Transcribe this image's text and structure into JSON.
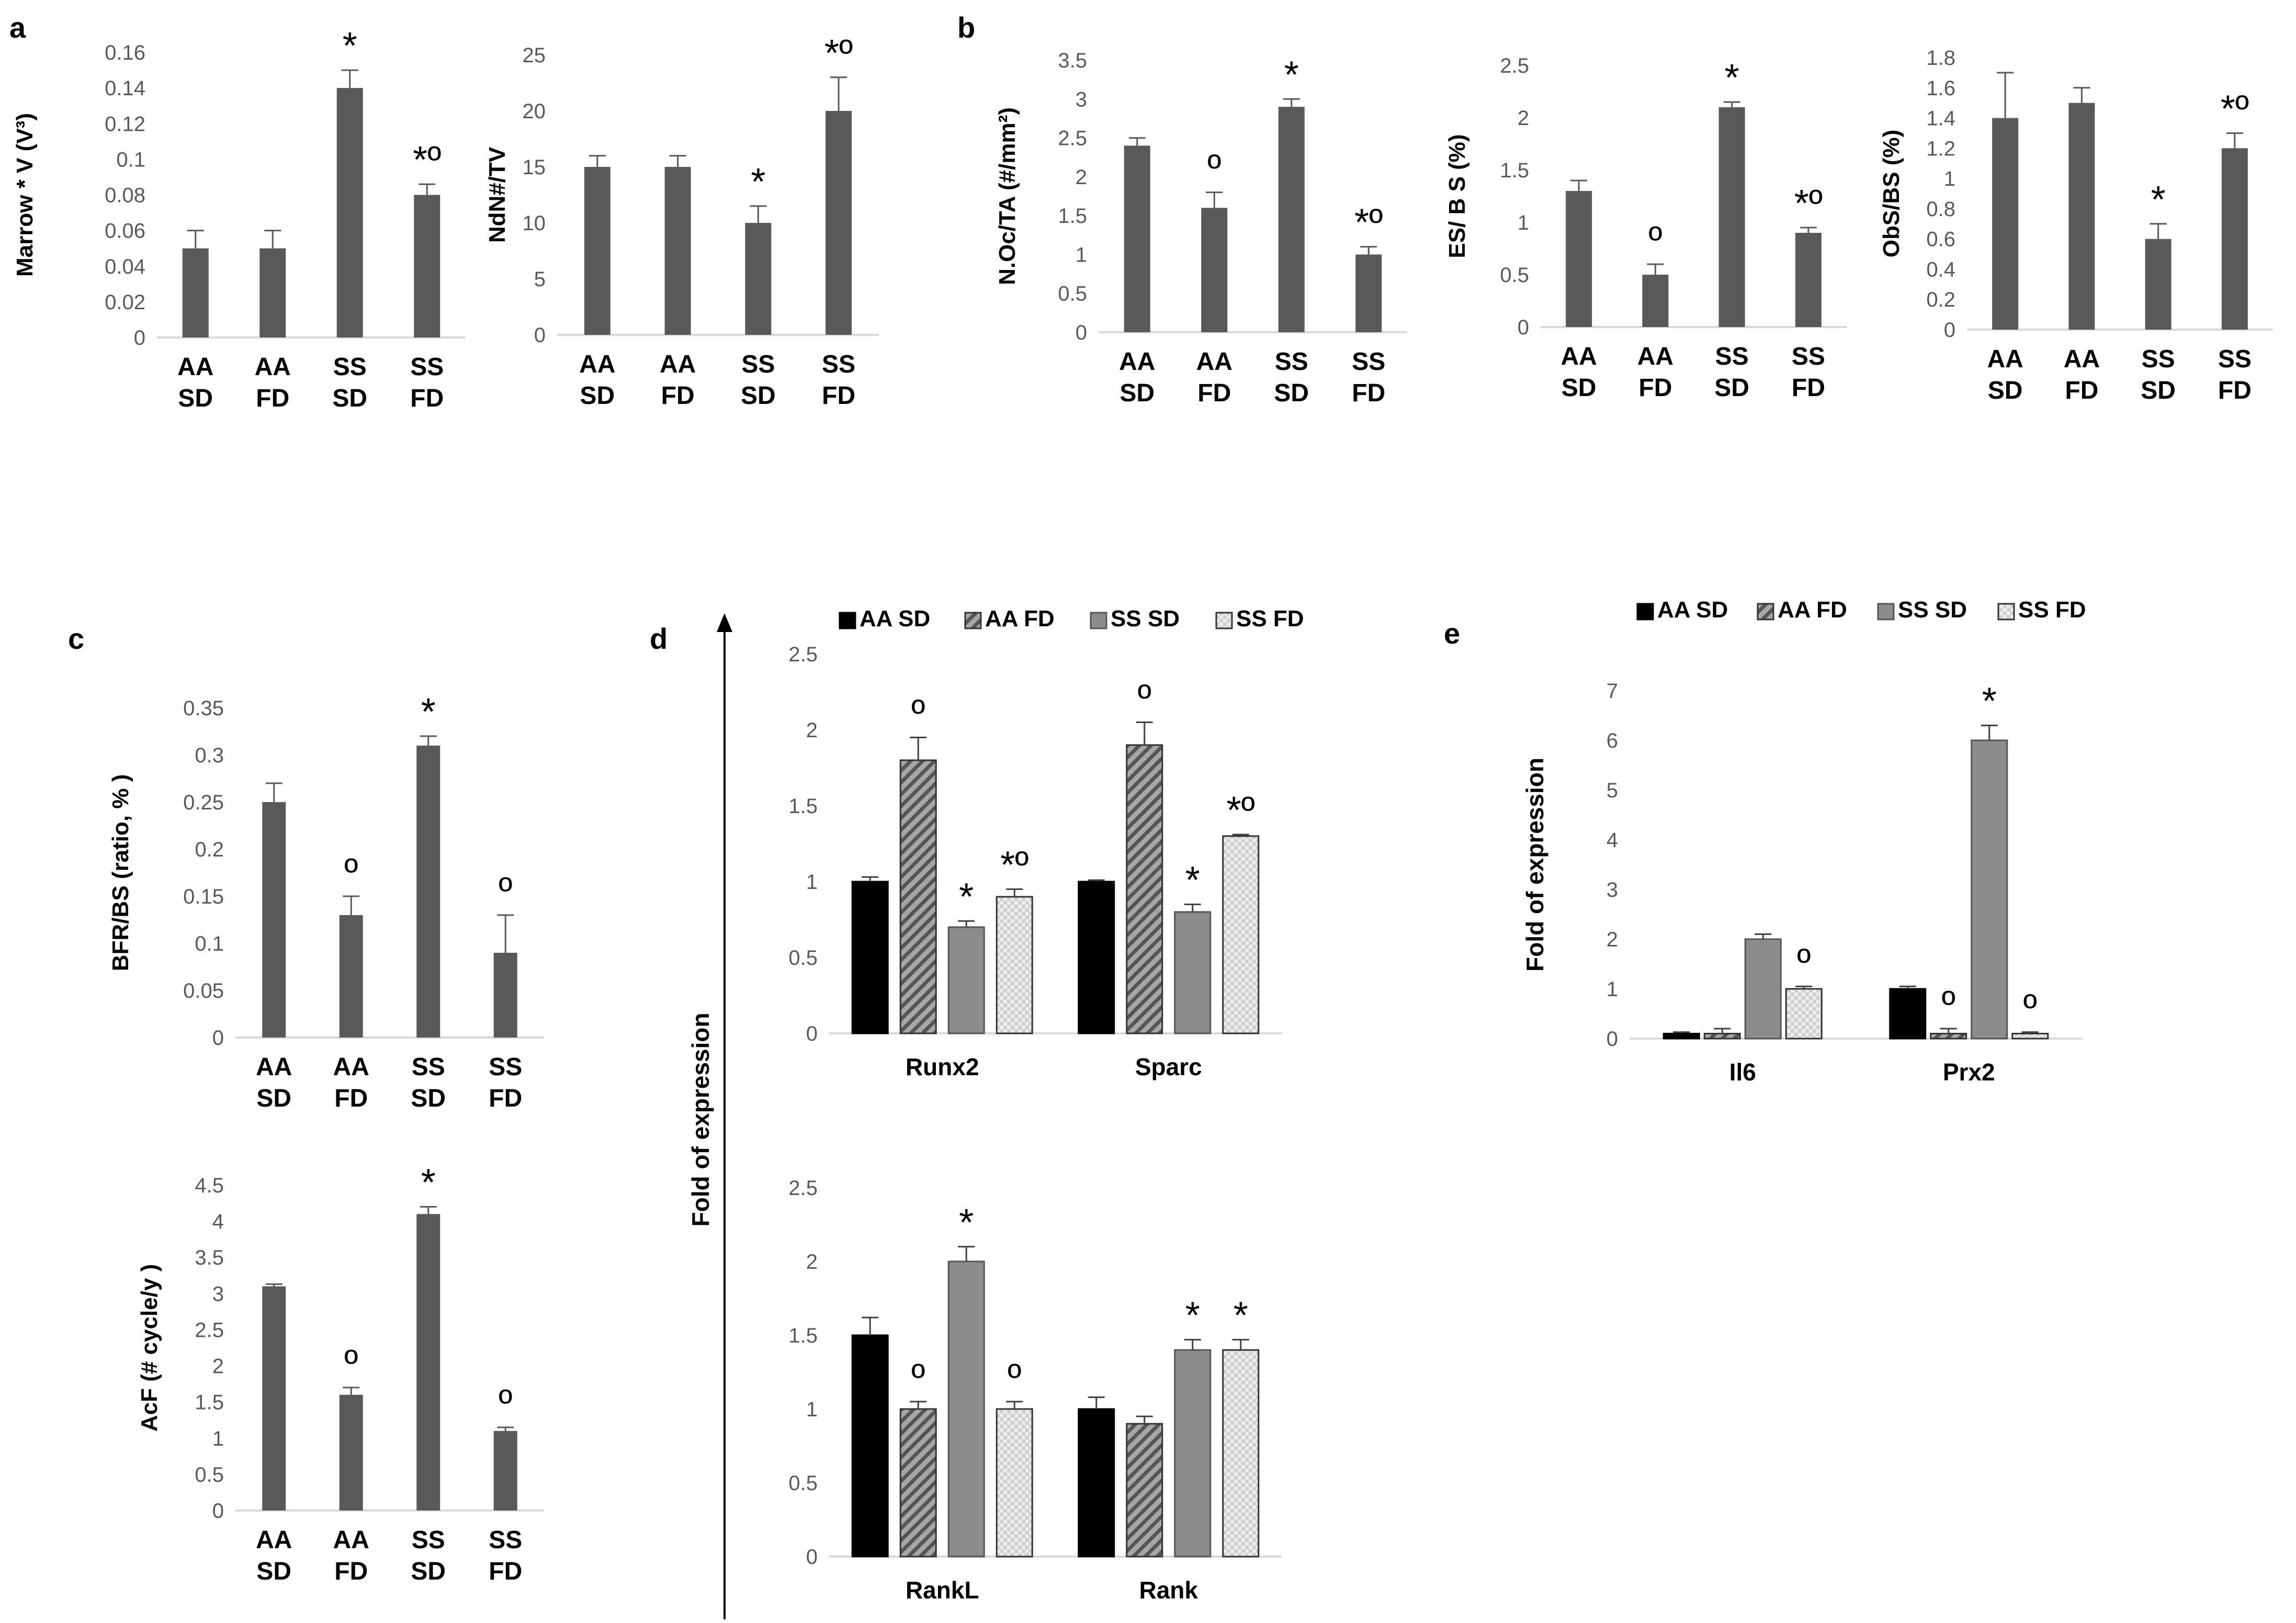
{
  "figure": {
    "panel_labels": {
      "a": "a",
      "b": "b",
      "c": "c",
      "d": "d",
      "e": "e"
    },
    "d_shared_ylabel": "Fold of expression",
    "colors": {
      "bar": "#595959",
      "aa_sd": "#000000",
      "aa_fd": "#7a7a7a",
      "ss_sd": "#8c8c8c",
      "ss_fd": "#e6e6e6",
      "axis": "#d9d9d9",
      "error": "#404040"
    }
  },
  "chart_data": [
    {
      "id": "a1",
      "type": "bar",
      "panel": "a",
      "title": "",
      "xlabel": "",
      "ylabel": "Marrow * V (V³)",
      "categories": [
        [
          "AA",
          "SD"
        ],
        [
          "AA",
          "FD"
        ],
        [
          "SS",
          "SD"
        ],
        [
          "SS",
          "FD"
        ]
      ],
      "values": [
        0.05,
        0.05,
        0.14,
        0.08
      ],
      "errors": [
        0.01,
        0.01,
        0.01,
        0.006
      ],
      "annotations": [
        "",
        "",
        "*",
        "*º"
      ],
      "yticks": [
        "0",
        "0.02",
        "0.04",
        "0.06",
        "0.08",
        "0.1",
        "0.12",
        "0.14",
        "0.16"
      ],
      "ylim": [
        0,
        0.16
      ]
    },
    {
      "id": "a2",
      "type": "bar",
      "panel": "a",
      "title": "",
      "xlabel": "",
      "ylabel": "NdN#/TV",
      "categories": [
        [
          "AA",
          "SD"
        ],
        [
          "AA",
          "FD"
        ],
        [
          "SS",
          "SD"
        ],
        [
          "SS",
          "FD"
        ]
      ],
      "values": [
        15,
        15,
        10,
        20
      ],
      "errors": [
        1,
        1,
        1.5,
        3
      ],
      "annotations": [
        "",
        "",
        "*",
        "*º"
      ],
      "yticks": [
        "0",
        "5",
        "10",
        "15",
        "20",
        "25"
      ],
      "ylim": [
        0,
        25
      ]
    },
    {
      "id": "b1",
      "type": "bar",
      "panel": "b",
      "title": "",
      "xlabel": "",
      "ylabel": "N.Oc/TA (#/mm²)",
      "categories": [
        [
          "AA",
          "SD"
        ],
        [
          "AA",
          "FD"
        ],
        [
          "SS",
          "SD"
        ],
        [
          "SS",
          "FD"
        ]
      ],
      "values": [
        2.4,
        1.6,
        2.9,
        1.0
      ],
      "errors": [
        0.1,
        0.2,
        0.1,
        0.1
      ],
      "annotations": [
        "",
        "º",
        "*",
        "*º"
      ],
      "yticks": [
        "0",
        "0.5",
        "1",
        "1.5",
        "2",
        "2.5",
        "3",
        "3.5"
      ],
      "ylim": [
        0,
        3.5
      ]
    },
    {
      "id": "b2",
      "type": "bar",
      "panel": "b",
      "title": "",
      "xlabel": "",
      "ylabel": "ES/ B S (%)",
      "categories": [
        [
          "AA",
          "SD"
        ],
        [
          "AA",
          "FD"
        ],
        [
          "SS",
          "SD"
        ],
        [
          "SS",
          "FD"
        ]
      ],
      "values": [
        1.3,
        0.5,
        2.1,
        0.9
      ],
      "errors": [
        0.1,
        0.1,
        0.05,
        0.05
      ],
      "annotations": [
        "",
        "º",
        "*",
        "*º"
      ],
      "yticks": [
        "0",
        "0.5",
        "1",
        "1.5",
        "2",
        "2.5"
      ],
      "ylim": [
        0,
        2.5
      ]
    },
    {
      "id": "b3",
      "type": "bar",
      "panel": "b",
      "title": "",
      "xlabel": "",
      "ylabel": "ObS/BS (%)",
      "categories": [
        [
          "AA",
          "SD"
        ],
        [
          "AA",
          "FD"
        ],
        [
          "SS",
          "SD"
        ],
        [
          "SS",
          "FD"
        ]
      ],
      "values": [
        1.4,
        1.5,
        0.6,
        1.2
      ],
      "errors": [
        0.3,
        0.1,
        0.1,
        0.1
      ],
      "annotations": [
        "",
        "",
        "*",
        "*º"
      ],
      "yticks": [
        "0",
        "0.2",
        "0.4",
        "0.6",
        "0.8",
        "1",
        "1.2",
        "1.4",
        "1.6",
        "1.8"
      ],
      "ylim": [
        0,
        1.8
      ]
    },
    {
      "id": "c1",
      "type": "bar",
      "panel": "c",
      "title": "",
      "xlabel": "",
      "ylabel": "BFR/BS (ratio, % )",
      "categories": [
        [
          "AA",
          "SD"
        ],
        [
          "AA",
          "FD"
        ],
        [
          "SS",
          "SD"
        ],
        [
          "SS",
          "FD"
        ]
      ],
      "values": [
        0.25,
        0.13,
        0.31,
        0.09
      ],
      "errors": [
        0.02,
        0.02,
        0.01,
        0.04
      ],
      "annotations": [
        "",
        "º",
        "*",
        "º"
      ],
      "yticks": [
        "0",
        "0.05",
        "0.1",
        "0.15",
        "0.2",
        "0.25",
        "0.3",
        "0.35"
      ],
      "ylim": [
        0,
        0.35
      ]
    },
    {
      "id": "c2",
      "type": "bar",
      "panel": "c",
      "title": "",
      "xlabel": "",
      "ylabel": "AcF (# cycle/y )",
      "categories": [
        [
          "AA",
          "SD"
        ],
        [
          "AA",
          "FD"
        ],
        [
          "SS",
          "SD"
        ],
        [
          "SS",
          "FD"
        ]
      ],
      "values": [
        3.1,
        1.6,
        4.1,
        1.1
      ],
      "errors": [
        0.03,
        0.1,
        0.1,
        0.05
      ],
      "annotations": [
        "",
        "º",
        "*",
        "º"
      ],
      "yticks": [
        "0",
        "0.5",
        "1",
        "1.5",
        "2",
        "2.5",
        "3",
        "3.5",
        "4",
        "4.5"
      ],
      "ylim": [
        0,
        4.5
      ]
    },
    {
      "id": "d1",
      "type": "bar",
      "panel": "d",
      "title": "",
      "xlabel": "",
      "ylabel": "",
      "legend": [
        "AA SD",
        "AA FD",
        "SS SD",
        "SS FD"
      ],
      "categories": [
        "Runx2",
        "Sparc"
      ],
      "series": [
        {
          "name": "AA SD",
          "values": [
            1.0,
            1.0
          ],
          "errors": [
            0.03,
            0.01
          ],
          "annotations": [
            "",
            ""
          ]
        },
        {
          "name": "AA FD",
          "values": [
            1.8,
            1.9
          ],
          "errors": [
            0.15,
            0.15
          ],
          "annotations": [
            "º",
            "º"
          ]
        },
        {
          "name": "SS SD",
          "values": [
            0.7,
            0.8
          ],
          "errors": [
            0.04,
            0.05
          ],
          "annotations": [
            "*",
            "*"
          ]
        },
        {
          "name": "SS FD",
          "values": [
            0.9,
            1.3
          ],
          "errors": [
            0.05,
            0.01
          ],
          "annotations": [
            "*º",
            "*º"
          ]
        }
      ],
      "yticks": [
        "0",
        "0.5",
        "1",
        "1.5",
        "2",
        "2.5"
      ],
      "ylim": [
        0,
        2.5
      ]
    },
    {
      "id": "d2",
      "type": "bar",
      "panel": "d",
      "title": "",
      "xlabel": "",
      "ylabel": "",
      "categories": [
        "RankL",
        "Rank"
      ],
      "series": [
        {
          "name": "AA SD",
          "values": [
            1.5,
            1.0
          ],
          "errors": [
            0.12,
            0.08
          ],
          "annotations": [
            "",
            ""
          ]
        },
        {
          "name": "AA FD",
          "values": [
            1.0,
            0.9
          ],
          "errors": [
            0.05,
            0.05
          ],
          "annotations": [
            "º",
            ""
          ]
        },
        {
          "name": "SS SD",
          "values": [
            2.0,
            1.4
          ],
          "errors": [
            0.1,
            0.07
          ],
          "annotations": [
            "*",
            "*"
          ]
        },
        {
          "name": "SS FD",
          "values": [
            1.0,
            1.4
          ],
          "errors": [
            0.05,
            0.07
          ],
          "annotations": [
            "º",
            "*"
          ]
        }
      ],
      "yticks": [
        "0",
        "0.5",
        "1",
        "1.5",
        "2",
        "2.5"
      ],
      "ylim": [
        0,
        2.5
      ]
    },
    {
      "id": "e1",
      "type": "bar",
      "panel": "e",
      "title": "",
      "xlabel": "",
      "ylabel": "Fold of expression",
      "legend": [
        "AA SD",
        "AA FD",
        "SS SD",
        "SS FD"
      ],
      "categories": [
        "Il6",
        "Prx2"
      ],
      "series": [
        {
          "name": "AA SD",
          "values": [
            0.1,
            1.0
          ],
          "errors": [
            0.03,
            0.05
          ],
          "annotations": [
            "",
            ""
          ]
        },
        {
          "name": "AA FD",
          "values": [
            0.1,
            0.1
          ],
          "errors": [
            0.1,
            0.1
          ],
          "annotations": [
            "",
            "º"
          ]
        },
        {
          "name": "SS SD",
          "values": [
            2.0,
            6.0
          ],
          "errors": [
            0.1,
            0.3
          ],
          "annotations": [
            "",
            "*"
          ]
        },
        {
          "name": "SS FD",
          "values": [
            1.0,
            0.1
          ],
          "errors": [
            0.05,
            0.03
          ],
          "annotations": [
            "º",
            "º"
          ]
        }
      ],
      "yticks": [
        "0",
        "1",
        "2",
        "3",
        "4",
        "5",
        "6",
        "7"
      ],
      "ylim": [
        0,
        7
      ]
    }
  ]
}
